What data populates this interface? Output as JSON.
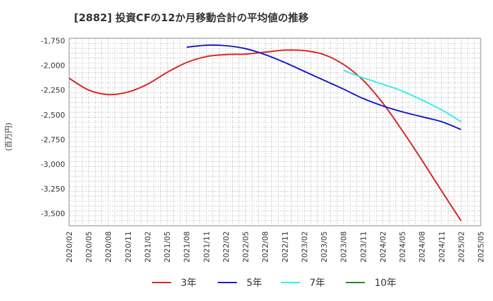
{
  "chart_data": {
    "type": "line",
    "title": "[2882]  投資CFの12か月移動合計の平均値の推移",
    "xlabel": "",
    "ylabel": "(百万円)",
    "ylim": [
      -3625,
      -1725
    ],
    "yticks": [
      -1750,
      -2000,
      -2250,
      -2500,
      -2750,
      -3000,
      -3250,
      -3500
    ],
    "ytick_labels": [
      "-1,750",
      "-2,000",
      "-2,250",
      "-2,500",
      "-2,750",
      "-3,000",
      "-3,250",
      "-3,500"
    ],
    "xrange": [
      "2020-02",
      "2025-05"
    ],
    "xticks": [
      "2020/02",
      "2020/05",
      "2020/08",
      "2020/11",
      "2021/02",
      "2021/05",
      "2021/08",
      "2021/11",
      "2022/02",
      "2022/05",
      "2022/08",
      "2022/11",
      "2023/02",
      "2023/05",
      "2023/08",
      "2023/11",
      "2024/02",
      "2024/05",
      "2024/08",
      "2024/11",
      "2025/02",
      "2025/05"
    ],
    "grid": true,
    "legend_position": "bottom",
    "series": [
      {
        "name": "3年",
        "color": "#dd2222",
        "points": [
          [
            "2020-02",
            -2130
          ],
          [
            "2020-05",
            -2250
          ],
          [
            "2020-08",
            -2295
          ],
          [
            "2020-11",
            -2270
          ],
          [
            "2021-02",
            -2190
          ],
          [
            "2021-05",
            -2070
          ],
          [
            "2021-08",
            -1970
          ],
          [
            "2021-11",
            -1910
          ],
          [
            "2022-02",
            -1890
          ],
          [
            "2022-05",
            -1885
          ],
          [
            "2022-08",
            -1865
          ],
          [
            "2022-11",
            -1845
          ],
          [
            "2023-02",
            -1850
          ],
          [
            "2023-05",
            -1890
          ],
          [
            "2023-08",
            -1990
          ],
          [
            "2023-11",
            -2150
          ],
          [
            "2024-02",
            -2380
          ],
          [
            "2024-05",
            -2660
          ],
          [
            "2024-08",
            -2960
          ],
          [
            "2024-11",
            -3270
          ],
          [
            "2025-02",
            -3575
          ]
        ]
      },
      {
        "name": "5年",
        "color": "#1a1acc",
        "points": [
          [
            "2021-08",
            -1815
          ],
          [
            "2021-11",
            -1795
          ],
          [
            "2022-02",
            -1800
          ],
          [
            "2022-05",
            -1830
          ],
          [
            "2022-08",
            -1890
          ],
          [
            "2022-11",
            -1970
          ],
          [
            "2023-02",
            -2060
          ],
          [
            "2023-05",
            -2150
          ],
          [
            "2023-08",
            -2240
          ],
          [
            "2023-11",
            -2335
          ],
          [
            "2024-02",
            -2410
          ],
          [
            "2024-05",
            -2470
          ],
          [
            "2024-08",
            -2520
          ],
          [
            "2024-11",
            -2570
          ],
          [
            "2025-02",
            -2650
          ]
        ]
      },
      {
        "name": "7年",
        "color": "#33eeee",
        "points": [
          [
            "2023-08",
            -2050
          ],
          [
            "2023-11",
            -2125
          ],
          [
            "2024-02",
            -2190
          ],
          [
            "2024-05",
            -2260
          ],
          [
            "2024-08",
            -2350
          ],
          [
            "2024-11",
            -2450
          ],
          [
            "2025-02",
            -2570
          ]
        ]
      },
      {
        "name": "10年",
        "color": "#228822",
        "points": []
      }
    ]
  }
}
